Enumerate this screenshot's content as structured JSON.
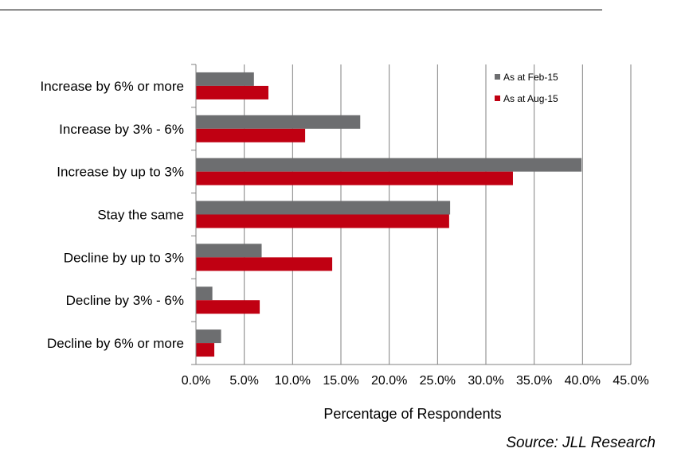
{
  "chart_data": {
    "type": "bar",
    "orientation": "horizontal",
    "categories": [
      "Increase by 6% or more",
      "Increase by 3% - 6%",
      "Increase by up to 3%",
      "Stay the same",
      "Decline by up to 3%",
      "Decline by 3% - 6%",
      "Decline by 6% or more"
    ],
    "series": [
      {
        "name": "As at Feb-15",
        "color": "#6d6e70",
        "values": [
          6.0,
          17.0,
          39.9,
          26.3,
          6.8,
          1.7,
          2.6
        ]
      },
      {
        "name": "As at Aug-15",
        "color": "#c00012",
        "values": [
          7.5,
          11.3,
          32.8,
          26.2,
          14.1,
          6.6,
          1.9
        ]
      }
    ],
    "xlabel": "Percentage of Respondents",
    "xlim": [
      0,
      45
    ],
    "xticks": [
      "0.0%",
      "5.0%",
      "10.0%",
      "15.0%",
      "20.0%",
      "25.0%",
      "30.0%",
      "35.0%",
      "40.0%",
      "45.0%"
    ],
    "grid": true,
    "legend_position": "top-right"
  },
  "source": "Source: JLL Research"
}
